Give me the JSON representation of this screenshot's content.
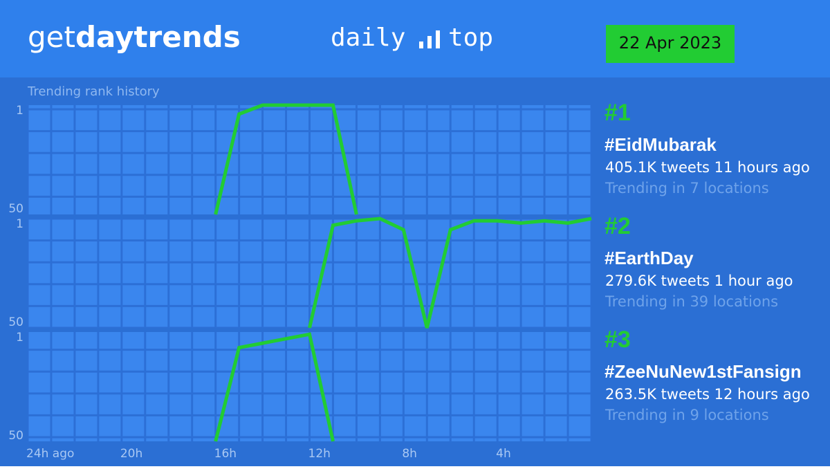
{
  "header": {
    "logo_light": "get",
    "logo_bold": "daytrends",
    "product_left": "daily",
    "product_right": "top",
    "date": "22 Apr 2023",
    "subtitle": "Trending rank history"
  },
  "chart_data": [
    {
      "type": "line",
      "rank": "#1",
      "x": [
        16,
        15,
        14,
        13,
        12,
        11,
        10
      ],
      "series": [
        {
          "name": "#EidMubarak",
          "color": "#22cc33",
          "values": [
            50,
            5,
            1,
            1,
            1,
            1,
            50
          ]
        }
      ],
      "stats": "405.1K tweets 11 hours ago",
      "locations": "Trending in 7 locations",
      "xlim": [
        24,
        0
      ],
      "ylim": [
        50,
        1
      ],
      "yticks": [
        1,
        50
      ],
      "grid": true
    },
    {
      "type": "line",
      "rank": "#2",
      "x": [
        12,
        11,
        10,
        9,
        8,
        7,
        6,
        5,
        4,
        3,
        2,
        1,
        0
      ],
      "series": [
        {
          "name": "#EarthDay",
          "color": "#22cc33",
          "values": [
            50,
            4,
            2,
            1,
            6,
            50,
            6,
            2,
            2,
            3,
            2,
            3,
            1
          ]
        }
      ],
      "stats": "279.6K tweets 1 hour ago",
      "locations": "Trending in 39 locations",
      "xlim": [
        24,
        0
      ],
      "ylim": [
        50,
        1
      ],
      "yticks": [
        1,
        50
      ],
      "grid": true
    },
    {
      "type": "line",
      "rank": "#3",
      "x": [
        16,
        15,
        14,
        13,
        12,
        11
      ],
      "series": [
        {
          "name": "#ZeeNuNew1stFansign",
          "color": "#22cc33",
          "values": [
            50,
            8,
            6,
            4,
            2,
            50
          ]
        }
      ],
      "stats": "263.5K tweets 12 hours ago",
      "locations": "Trending in 9 locations",
      "xlim": [
        24,
        0
      ],
      "ylim": [
        50,
        1
      ],
      "yticks": [
        1,
        50
      ],
      "grid": true,
      "xticks": [
        {
          "value": 24,
          "label": "24h ago"
        },
        {
          "value": 20,
          "label": "20h"
        },
        {
          "value": 16,
          "label": "16h"
        },
        {
          "value": 12,
          "label": "12h"
        },
        {
          "value": 8,
          "label": "8h"
        },
        {
          "value": 4,
          "label": "4h"
        }
      ]
    }
  ]
}
